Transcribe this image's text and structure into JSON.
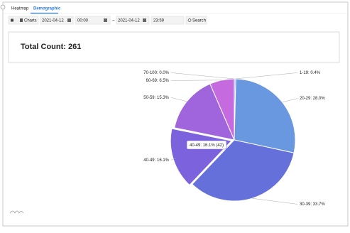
{
  "tabs": [
    "Heatmap",
    "Demographic"
  ],
  "toolbar": {
    "charts_button": "Charts",
    "start_date": "2021-04-12",
    "start_time": "00:00",
    "separator": "~",
    "end_date": "2021-04-12",
    "end_time": "23:59",
    "search_button": "Search"
  },
  "summary": "Total Count: 261",
  "chart_data": {
    "type": "pie",
    "categories": [
      "1-19: 0.4%",
      "20-29: 28.0%",
      "30-39: 33.7%",
      "40-49: 16.1%",
      "50-59: 15.3%",
      "60-69: 6.5%",
      "70-100: 0.0%"
    ],
    "values": [
      0.4,
      28.0,
      33.7,
      16.1,
      15.3,
      6.5,
      0.0
    ],
    "colors": [
      "#8fb0ea",
      "#6a98e0",
      "#6670db",
      "#7d62dd",
      "#a064dc",
      "#c66ae0",
      "#d070e0"
    ],
    "tooltip": "40-49: 16.1% (42)"
  }
}
